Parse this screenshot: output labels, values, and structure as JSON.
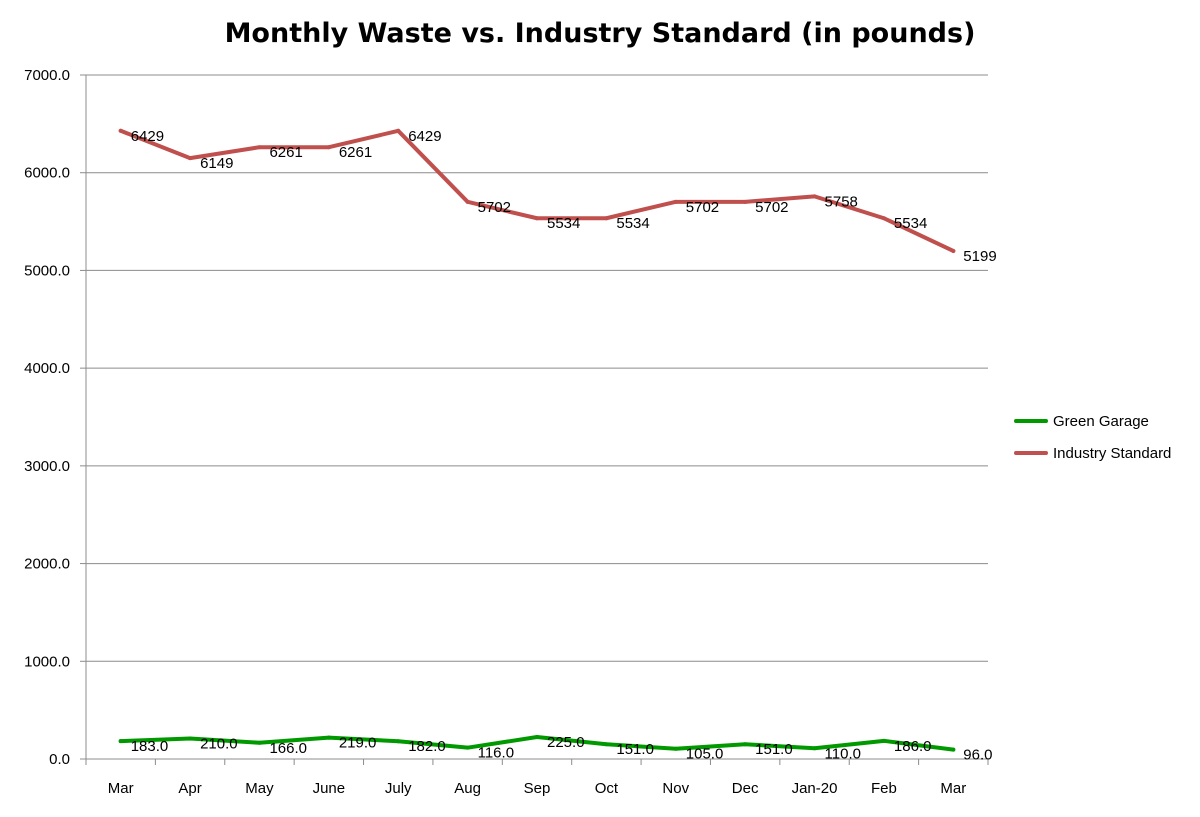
{
  "chart_data": {
    "type": "line",
    "title": "Monthly Waste vs. Industry Standard (in pounds)",
    "categories": [
      "Mar",
      "Apr",
      "May",
      "June",
      "July",
      "Aug",
      "Sep",
      "Oct",
      "Nov",
      "Dec",
      "Jan-20",
      "Feb",
      "Mar"
    ],
    "y_ticks": [
      "0.0",
      "1000.0",
      "2000.0",
      "3000.0",
      "4000.0",
      "5000.0",
      "6000.0",
      "7000.0"
    ],
    "ylim": [
      0,
      7000
    ],
    "grid": true,
    "legend_position": "right",
    "series": [
      {
        "name": "Green Garage",
        "color": "#009900",
        "values": [
          183,
          210,
          166,
          219,
          182,
          116,
          225,
          151,
          105,
          151,
          110,
          186,
          96
        ],
        "labels": [
          "183.0",
          "210.0",
          "166.0",
          "219.0",
          "182.0",
          "116.0",
          "225.0",
          "151.0",
          "105.0",
          "151.0",
          "110.0",
          "186.0",
          "96.0"
        ]
      },
      {
        "name": "Industry Standard",
        "color": "#c0504d",
        "values": [
          6429,
          6149,
          6261,
          6261,
          6429,
          5702,
          5534,
          5534,
          5702,
          5702,
          5758,
          5534,
          5199
        ],
        "labels": [
          "6429",
          "6149",
          "6261",
          "6261",
          "6429",
          "5702",
          "5534",
          "5534",
          "5702",
          "5702",
          "5758",
          "5534",
          "5199"
        ]
      }
    ]
  }
}
